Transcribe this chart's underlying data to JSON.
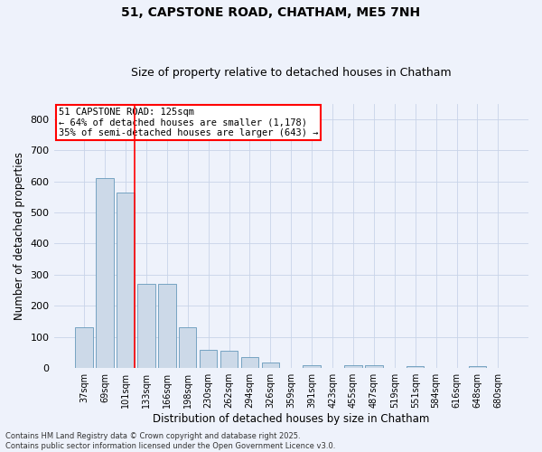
{
  "title": "51, CAPSTONE ROAD, CHATHAM, ME5 7NH",
  "subtitle": "Size of property relative to detached houses in Chatham",
  "xlabel": "Distribution of detached houses by size in Chatham",
  "ylabel": "Number of detached properties",
  "categories": [
    "37sqm",
    "69sqm",
    "101sqm",
    "133sqm",
    "166sqm",
    "198sqm",
    "230sqm",
    "262sqm",
    "294sqm",
    "326sqm",
    "359sqm",
    "391sqm",
    "423sqm",
    "455sqm",
    "487sqm",
    "519sqm",
    "551sqm",
    "584sqm",
    "616sqm",
    "648sqm",
    "680sqm"
  ],
  "values": [
    130,
    610,
    565,
    270,
    270,
    130,
    60,
    55,
    35,
    18,
    0,
    10,
    0,
    8,
    8,
    0,
    5,
    0,
    0,
    5,
    0
  ],
  "bar_color": "#ccd9e8",
  "bar_edge_color": "#6699bb",
  "grid_color": "#c8d4e8",
  "background_color": "#eef2fb",
  "red_line_index": 2,
  "annotation_title": "51 CAPSTONE ROAD: 125sqm",
  "annotation_line1": "← 64% of detached houses are smaller (1,178)",
  "annotation_line2": "35% of semi-detached houses are larger (643) →",
  "footer_line1": "Contains HM Land Registry data © Crown copyright and database right 2025.",
  "footer_line2": "Contains public sector information licensed under the Open Government Licence v3.0.",
  "ylim": [
    0,
    850
  ],
  "yticks": [
    0,
    100,
    200,
    300,
    400,
    500,
    600,
    700,
    800
  ]
}
